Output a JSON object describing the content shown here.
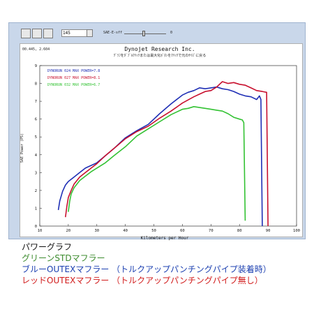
{
  "toolbar": {
    "field1": "145",
    "label1": "SAE-E-sff",
    "label2": "0"
  },
  "chart_data": {
    "type": "line",
    "corner_text": "00.445, 2.604",
    "title": "Dynojet  Research  Inc.",
    "subtitle": "ｸﾞﾗﾌをﾀﾞﾌﾞﾙｸﾘｯｸまたは最大化ﾎﾞﾀﾝをｸﾘｯｸで元のｻｲｽﾞに戻る",
    "xlabel": "Kilometers per Hour",
    "ylabel": "SAE Power (PS)",
    "xlim": [
      10,
      100
    ],
    "ylim": [
      0,
      9
    ],
    "xticks": [
      10,
      20,
      30,
      40,
      50,
      60,
      70,
      80,
      90,
      100
    ],
    "yticks": [
      0,
      1,
      2,
      3,
      4,
      5,
      6,
      7,
      8,
      9
    ],
    "grid": false,
    "legend_position": "top-left",
    "series": [
      {
        "name": "DYNORUN 024  MAX POWER=7.8",
        "color": "#1f2fb5",
        "points": [
          [
            16.5,
            0.9
          ],
          [
            17,
            1.4
          ],
          [
            18,
            1.95
          ],
          [
            19,
            2.3
          ],
          [
            20,
            2.5
          ],
          [
            22,
            2.75
          ],
          [
            24,
            3.0
          ],
          [
            26,
            3.25
          ],
          [
            28,
            3.4
          ],
          [
            30,
            3.55
          ],
          [
            33,
            3.95
          ],
          [
            36,
            4.35
          ],
          [
            40,
            4.95
          ],
          [
            44,
            5.35
          ],
          [
            48,
            5.7
          ],
          [
            52,
            6.3
          ],
          [
            56,
            6.85
          ],
          [
            60,
            7.35
          ],
          [
            62,
            7.5
          ],
          [
            64,
            7.6
          ],
          [
            66,
            7.75
          ],
          [
            68,
            7.7
          ],
          [
            70,
            7.75
          ],
          [
            72,
            7.8
          ],
          [
            74,
            7.7
          ],
          [
            76,
            7.65
          ],
          [
            78,
            7.55
          ],
          [
            80,
            7.4
          ],
          [
            82,
            7.3
          ],
          [
            84,
            7.25
          ],
          [
            86,
            7.1
          ],
          [
            87,
            7.3
          ],
          [
            87.5,
            7.1
          ],
          [
            88,
            0
          ]
        ]
      },
      {
        "name": "DYNORUN 027  MAX POWER=8.1",
        "color": "#c8102e",
        "points": [
          [
            19,
            0.5
          ],
          [
            19.5,
            1.1
          ],
          [
            20,
            1.6
          ],
          [
            21,
            2.0
          ],
          [
            22,
            2.35
          ],
          [
            24,
            2.75
          ],
          [
            26,
            3.0
          ],
          [
            28,
            3.25
          ],
          [
            30,
            3.5
          ],
          [
            33,
            3.95
          ],
          [
            36,
            4.35
          ],
          [
            40,
            4.9
          ],
          [
            44,
            5.3
          ],
          [
            48,
            5.6
          ],
          [
            52,
            6.05
          ],
          [
            56,
            6.45
          ],
          [
            60,
            6.9
          ],
          [
            64,
            7.25
          ],
          [
            66,
            7.4
          ],
          [
            68,
            7.55
          ],
          [
            70,
            7.6
          ],
          [
            72,
            7.8
          ],
          [
            74,
            8.1
          ],
          [
            76,
            8.0
          ],
          [
            78,
            8.05
          ],
          [
            80,
            7.95
          ],
          [
            82,
            7.9
          ],
          [
            84,
            7.75
          ],
          [
            86,
            7.6
          ],
          [
            88,
            7.55
          ],
          [
            89.5,
            7.5
          ],
          [
            90,
            0
          ]
        ]
      },
      {
        "name": "DYNORUN 032  MAX POWER=6.7",
        "color": "#33c233",
        "points": [
          [
            20,
            0.8
          ],
          [
            20.5,
            1.4
          ],
          [
            21,
            1.8
          ],
          [
            22,
            2.15
          ],
          [
            24,
            2.55
          ],
          [
            26,
            2.8
          ],
          [
            28,
            3.05
          ],
          [
            30,
            3.25
          ],
          [
            33,
            3.55
          ],
          [
            36,
            3.95
          ],
          [
            40,
            4.45
          ],
          [
            44,
            5.05
          ],
          [
            48,
            5.45
          ],
          [
            52,
            5.85
          ],
          [
            56,
            6.25
          ],
          [
            60,
            6.55
          ],
          [
            62,
            6.6
          ],
          [
            64,
            6.7
          ],
          [
            66,
            6.65
          ],
          [
            68,
            6.6
          ],
          [
            70,
            6.55
          ],
          [
            72,
            6.5
          ],
          [
            74,
            6.45
          ],
          [
            76,
            6.3
          ],
          [
            78,
            6.1
          ],
          [
            80,
            6.0
          ],
          [
            81,
            5.95
          ],
          [
            81.5,
            5.8
          ],
          [
            82,
            0.3
          ]
        ]
      }
    ]
  },
  "captions": {
    "title": "パワーグラフ",
    "green": "グリーンSTDマフラー",
    "blue": "ブルーOUTEXマフラー （トルクアップパンチングパイプ装着時）",
    "red": "レッドOUTEXマフラー （トルクアップパンチングパイプ無し）"
  },
  "colors": {
    "caption_title": "#111111",
    "caption_green": "#3c8b2e",
    "caption_blue": "#1b3fb0",
    "caption_red": "#d11b1b"
  }
}
